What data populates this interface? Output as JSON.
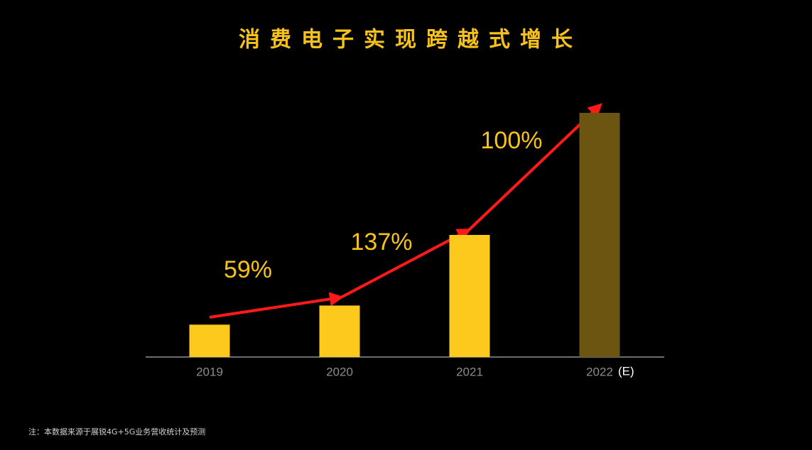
{
  "chart_data": {
    "type": "bar",
    "title": "消费电子实现跨越式增长",
    "categories": [
      "2019",
      "2020",
      "2021",
      "2022"
    ],
    "estimate_label": "(E)",
    "values": [
      100,
      159,
      377,
      754
    ],
    "colors": [
      "#fcc91c",
      "#fcc91c",
      "#fcc91c",
      "#6b5510"
    ],
    "ylim": [
      0,
      800
    ],
    "growth": {
      "values": [
        59,
        137,
        100
      ],
      "value_labels": [
        "59%",
        "137%",
        "100%"
      ]
    },
    "footnote": "注：本数据来源于展锐4G+5G业务营收统计及预测"
  }
}
